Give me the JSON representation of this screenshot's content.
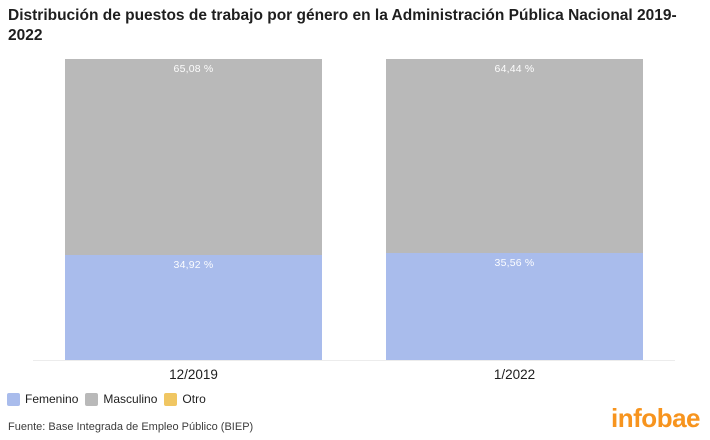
{
  "title": "Distribución de puestos de trabajo por género en la Administración Pública Nacional 2019- 2022",
  "chart_data": {
    "type": "bar",
    "subtype": "stacked-percent-column",
    "title": "Distribución de puestos de trabajo por género en la Administración Pública Nacional 2019- 2022",
    "categories": [
      "12/2019",
      "1/2022"
    ],
    "series": [
      {
        "name": "Femenino",
        "color": "#a9bcec",
        "values": [
          34.92,
          35.56
        ],
        "labels": [
          "34,92 %",
          "35,56 %"
        ]
      },
      {
        "name": "Masculino",
        "color": "#b9b9b9",
        "values": [
          65.08,
          64.44
        ],
        "labels": [
          "65,08 %",
          "64,44 %"
        ]
      },
      {
        "name": "Otro",
        "color": "#f0c662",
        "values": [
          0,
          0
        ],
        "labels": [
          "",
          ""
        ]
      }
    ],
    "stack_order_bottom_to_top": [
      "Femenino",
      "Masculino",
      "Otro"
    ],
    "ylim": [
      0,
      100
    ],
    "grid": false,
    "value_label_color": "#ffffff",
    "legend_position": "bottom-left"
  },
  "legend": {
    "items": [
      {
        "label": "Femenino",
        "color": "#a9bcec"
      },
      {
        "label": "Masculino",
        "color": "#b9b9b9"
      },
      {
        "label": "Otro",
        "color": "#f0c662"
      }
    ]
  },
  "footer": {
    "source": "Fuente: Base Integrada de Empleo Público (BIEP)"
  },
  "branding": {
    "logo_text": "infobae",
    "logo_color": "#f7941e"
  }
}
